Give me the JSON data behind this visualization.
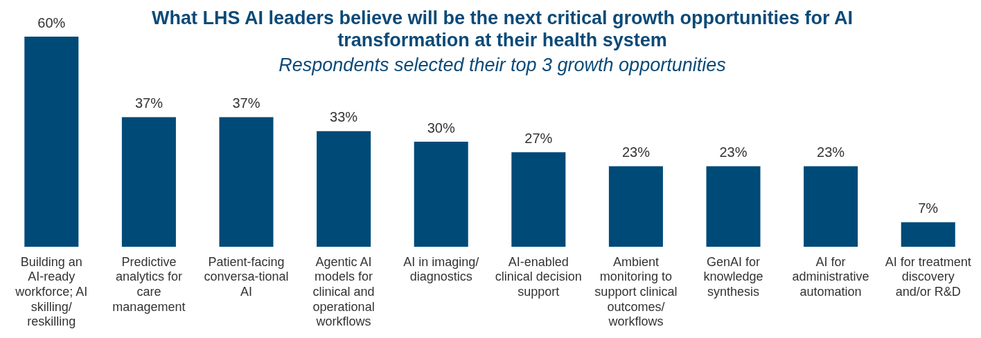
{
  "chart_data": {
    "type": "bar",
    "title": "What LHS AI leaders believe will be the next critical growth opportunities for AI transformation at their health system",
    "subtitle": "Respondents selected their top 3 growth opportunities",
    "categories": [
      "Building an AI-ready workforce; AI skilling/ reskilling",
      "Predictive analytics for care management",
      "Patient-facing conversa-tional AI",
      "Agentic AI models for clinical and operational workflows",
      "AI in imaging/ diagnostics",
      "AI-enabled clinical decision support",
      "Ambient monitoring to support clinical outcomes/ workflows",
      "GenAI for knowledge synthesis",
      "AI for administrative automation",
      "AI for treatment discovery and/or R&D"
    ],
    "values": [
      60,
      37,
      37,
      33,
      30,
      27,
      23,
      23,
      23,
      7
    ],
    "value_labels": [
      "60%",
      "37%",
      "37%",
      "33%",
      "30%",
      "27%",
      "23%",
      "23%",
      "23%",
      "7%"
    ],
    "color": "#004a78",
    "grid": false,
    "legend": false
  }
}
